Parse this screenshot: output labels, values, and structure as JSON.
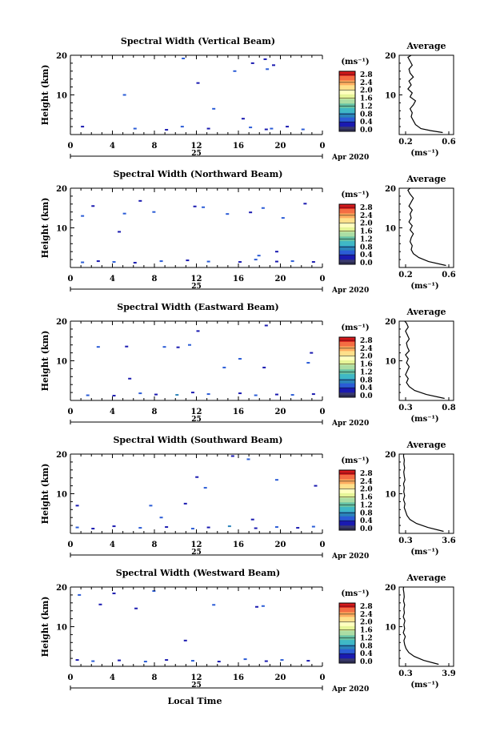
{
  "figure": {
    "x_axis_label": "Local Time",
    "x_ticks": [
      "0",
      "4",
      "8",
      "12",
      "16",
      "20",
      "0"
    ],
    "date_day": "25",
    "date_month_year": "Apr 2020",
    "height_label": "Height (km)",
    "height_ticks": [
      "20",
      "10"
    ],
    "units_label": "(ms⁻¹)",
    "colorbar_ticks": [
      "2.8",
      "2.4",
      "2.0",
      "1.6",
      "1.2",
      "0.8",
      "0.4",
      "0.0"
    ],
    "colorbar_colors": [
      "#d7191c",
      "#f46d43",
      "#fdae61",
      "#fee08b",
      "#ffffbf",
      "#e6f598",
      "#abdda4",
      "#66c2a5",
      "#3fb8c6",
      "#2b83ba",
      "#2b5cd6",
      "#1a1ab0",
      "#3a3a6e"
    ],
    "average_title": "Average",
    "average_unit_label": "(ms⁻¹)"
  },
  "panels": [
    {
      "title": "Spectral Width (Vertical Beam)",
      "avg_ticks": [
        "0.2",
        "0.6"
      ]
    },
    {
      "title": "Spectral Width (Northward Beam)",
      "avg_ticks": [
        "0.2",
        "0.6"
      ]
    },
    {
      "title": "Spectral Width (Eastward Beam)",
      "avg_ticks": [
        "0.3",
        "0.8"
      ]
    },
    {
      "title": "Spectral Width (Southward Beam)",
      "avg_ticks": [
        "0.3",
        "3.6"
      ]
    },
    {
      "title": "Spectral Width (Westward Beam)",
      "avg_ticks": [
        "0.3",
        "3.9"
      ]
    }
  ],
  "chart_data": [
    {
      "type": "heatmap",
      "title": "Spectral Width (Vertical Beam)",
      "xlabel": "",
      "ylabel": "Height (km)",
      "xlim": [
        0,
        24
      ],
      "ylim": [
        0,
        20
      ],
      "cells": [
        [
          1,
          2,
          0.3
        ],
        [
          6,
          1.5,
          0.4
        ],
        [
          9,
          1.2,
          0.3
        ],
        [
          10.5,
          2,
          0.5
        ],
        [
          13,
          1.5,
          0.3
        ],
        [
          17,
          1.8,
          0.4
        ],
        [
          18.5,
          1.3,
          0.3
        ],
        [
          19,
          1.5,
          0.5
        ],
        [
          20.5,
          2,
          0.3
        ],
        [
          22,
          1.3,
          0.4
        ],
        [
          5,
          10,
          0.4
        ],
        [
          12,
          13,
          0.3
        ],
        [
          15.5,
          16,
          0.5
        ],
        [
          17.2,
          18,
          0.3
        ],
        [
          18.6,
          16.5,
          0.4
        ],
        [
          19.2,
          17.5,
          0.3
        ],
        [
          13.5,
          6.5,
          0.4
        ],
        [
          16.3,
          4,
          0.3
        ],
        [
          18.4,
          19,
          0.3
        ],
        [
          10.6,
          19.2,
          0.4
        ]
      ]
    },
    {
      "type": "heatmap",
      "title": "Spectral Width (Northward Beam)",
      "xlabel": "",
      "ylabel": "Height (km)",
      "xlim": [
        0,
        24
      ],
      "ylim": [
        0,
        20
      ],
      "cells": [
        [
          1,
          1.3,
          0.4
        ],
        [
          2.5,
          1.6,
          0.3
        ],
        [
          4,
          1.4,
          0.5
        ],
        [
          6,
          1.2,
          0.3
        ],
        [
          8.5,
          1.6,
          0.4
        ],
        [
          11,
          1.8,
          0.3
        ],
        [
          13,
          1.5,
          0.5
        ],
        [
          16,
          1.4,
          0.3
        ],
        [
          17.5,
          2,
          0.4
        ],
        [
          19.5,
          1.5,
          0.3
        ],
        [
          21,
          1.6,
          0.5
        ],
        [
          23,
          1.4,
          0.3
        ],
        [
          1,
          13,
          0.4
        ],
        [
          2,
          15.5,
          0.3
        ],
        [
          5,
          13.6,
          0.5
        ],
        [
          6.5,
          16.8,
          0.3
        ],
        [
          7.8,
          14,
          0.4
        ],
        [
          11.7,
          15.4,
          0.3
        ],
        [
          14.8,
          13.5,
          0.4
        ],
        [
          17,
          13.9,
          0.3
        ],
        [
          18.2,
          15,
          0.5
        ],
        [
          19.5,
          4,
          0.3
        ],
        [
          20.1,
          12.5,
          0.4
        ],
        [
          22.2,
          16.1,
          0.3
        ],
        [
          17.8,
          3,
          0.4
        ],
        [
          12.5,
          15.2,
          0.5
        ],
        [
          4.5,
          9,
          0.3
        ]
      ]
    },
    {
      "type": "heatmap",
      "title": "Spectral Width (Eastward Beam)",
      "xlabel": "",
      "ylabel": "Height (km)",
      "xlim": [
        0,
        24
      ],
      "ylim": [
        0,
        20
      ],
      "cells": [
        [
          1.5,
          1.3,
          0.5
        ],
        [
          4,
          1.2,
          0.3
        ],
        [
          6.5,
          1.8,
          0.4
        ],
        [
          8,
          1.5,
          0.3
        ],
        [
          10,
          1.4,
          0.6
        ],
        [
          11.5,
          2,
          0.3
        ],
        [
          13,
          1.6,
          0.4
        ],
        [
          16,
          1.8,
          0.3
        ],
        [
          17.5,
          1.3,
          0.5
        ],
        [
          19.5,
          1.5,
          0.3
        ],
        [
          21,
          1.4,
          0.4
        ],
        [
          23,
          1.6,
          0.3
        ],
        [
          2.5,
          13.5,
          0.4
        ],
        [
          5.2,
          13.6,
          0.3
        ],
        [
          8.8,
          13.5,
          0.5
        ],
        [
          10.1,
          13.4,
          0.3
        ],
        [
          11.2,
          14,
          0.4
        ],
        [
          12,
          17.5,
          0.3
        ],
        [
          16,
          10.5,
          0.5
        ],
        [
          18.5,
          18.9,
          0.3
        ],
        [
          22.5,
          9.5,
          0.4
        ],
        [
          5.5,
          5.5,
          0.3
        ],
        [
          14.5,
          8.3,
          0.4
        ],
        [
          18.3,
          8.3,
          0.3
        ],
        [
          22.8,
          12,
          0.3
        ]
      ]
    },
    {
      "type": "heatmap",
      "title": "Spectral Width (Southward Beam)",
      "xlabel": "",
      "ylabel": "Height (km)",
      "xlim": [
        0,
        24
      ],
      "ylim": [
        0,
        20
      ],
      "cells": [
        [
          0.5,
          1.5,
          0.4
        ],
        [
          2,
          1.2,
          0.3
        ],
        [
          4,
          1.8,
          0.3
        ],
        [
          6.5,
          1.4,
          0.5
        ],
        [
          9,
          1.6,
          0.3
        ],
        [
          11.5,
          1.2,
          0.4
        ],
        [
          13,
          1.5,
          0.3
        ],
        [
          15,
          1.8,
          0.6
        ],
        [
          17.5,
          1.3,
          0.3
        ],
        [
          19.5,
          1.6,
          0.4
        ],
        [
          21.5,
          1.4,
          0.3
        ],
        [
          23,
          1.7,
          0.5
        ],
        [
          0.5,
          7,
          0.3
        ],
        [
          7.5,
          7,
          0.4
        ],
        [
          10.8,
          7.5,
          0.3
        ],
        [
          12.7,
          11.5,
          0.5
        ],
        [
          15.3,
          19.5,
          0.3
        ],
        [
          16.8,
          18.7,
          0.4
        ],
        [
          17.2,
          3.5,
          0.3
        ],
        [
          19.5,
          13.5,
          0.4
        ],
        [
          23.2,
          12,
          0.3
        ],
        [
          11.9,
          14.2,
          0.3
        ],
        [
          8.5,
          4,
          0.4
        ]
      ]
    },
    {
      "type": "heatmap",
      "title": "Spectral Width (Westward Beam)",
      "xlabel": "",
      "ylabel": "Height (km)",
      "xlim": [
        0,
        24
      ],
      "ylim": [
        0,
        20
      ],
      "cells": [
        [
          0.5,
          1.6,
          0.3
        ],
        [
          2,
          1.3,
          0.4
        ],
        [
          4.5,
          1.5,
          0.3
        ],
        [
          7,
          1.2,
          0.5
        ],
        [
          9,
          1.6,
          0.3
        ],
        [
          11.5,
          1.4,
          0.4
        ],
        [
          14,
          1.2,
          0.3
        ],
        [
          16.5,
          1.8,
          0.5
        ],
        [
          18.5,
          1.3,
          0.3
        ],
        [
          20,
          1.6,
          0.4
        ],
        [
          22.5,
          1.4,
          0.3
        ],
        [
          0.7,
          18,
          0.4
        ],
        [
          2.7,
          15.6,
          0.3
        ],
        [
          4,
          18.4,
          0.3
        ],
        [
          7.8,
          19,
          0.5
        ],
        [
          10.8,
          6.5,
          0.3
        ],
        [
          13.5,
          15.5,
          0.4
        ],
        [
          17.6,
          15,
          0.3
        ],
        [
          18.2,
          15.2,
          0.4
        ],
        [
          6.1,
          14.6,
          0.3
        ]
      ]
    },
    {
      "type": "line",
      "title": "Average",
      "ylabel": "Height (km)",
      "xlim": [
        0.15,
        0.65
      ],
      "ylim": [
        0,
        20
      ],
      "x": [
        0.55,
        0.44,
        0.35,
        0.3,
        0.28,
        0.26,
        0.27,
        0.25,
        0.28,
        0.3,
        0.25,
        0.27,
        0.23,
        0.26,
        0.24,
        0.28,
        0.25,
        0.24,
        0.27,
        0.25,
        0.23,
        0.26
      ],
      "y": [
        0.5,
        1,
        1.5,
        2.5,
        3.5,
        4.5,
        5.5,
        6.5,
        7.5,
        8.5,
        9.5,
        10.5,
        11.5,
        12.5,
        13.5,
        14.5,
        15.5,
        16.5,
        17.5,
        18.5,
        19.5,
        20
      ]
    },
    {
      "type": "line",
      "title": "Average",
      "ylabel": "Height (km)",
      "xlim": [
        0.15,
        0.65
      ],
      "ylim": [
        0,
        20
      ],
      "x": [
        0.58,
        0.42,
        0.33,
        0.28,
        0.26,
        0.27,
        0.25,
        0.26,
        0.28,
        0.25,
        0.27,
        0.24,
        0.26,
        0.25,
        0.27,
        0.24,
        0.26,
        0.28,
        0.25,
        0.23,
        0.25
      ],
      "y": [
        0.5,
        1.5,
        2.5,
        3.5,
        4.5,
        5.5,
        6.5,
        7.5,
        8.5,
        9.5,
        10.5,
        11.5,
        12.5,
        13.5,
        14.5,
        15.5,
        16.5,
        17.5,
        18.5,
        19.5,
        20
      ]
    },
    {
      "type": "line",
      "title": "Average",
      "ylabel": "Height (km)",
      "xlim": [
        0.25,
        0.85
      ],
      "ylim": [
        0,
        20
      ],
      "x": [
        0.75,
        0.55,
        0.42,
        0.36,
        0.33,
        0.35,
        0.32,
        0.34,
        0.36,
        0.33,
        0.35,
        0.32,
        0.36,
        0.34,
        0.33,
        0.36,
        0.34,
        0.32,
        0.35,
        0.33,
        0.31
      ],
      "y": [
        0.5,
        1.5,
        2.5,
        3.5,
        4.5,
        5.5,
        6.5,
        7.5,
        8.5,
        9.5,
        10.5,
        11.5,
        12.5,
        13.5,
        14.5,
        15.5,
        16.5,
        17.5,
        18.5,
        19.5,
        20
      ]
    },
    {
      "type": "line",
      "title": "Average",
      "ylabel": "Height (km)",
      "xlim": [
        0.2,
        4.0
      ],
      "ylim": [
        0,
        20
      ],
      "x": [
        3.3,
        2.2,
        1.4,
        0.95,
        0.75,
        0.65,
        0.55,
        0.6,
        0.5,
        0.58,
        0.52,
        0.56,
        0.5,
        0.6,
        0.55,
        0.52,
        0.58,
        0.53,
        0.56,
        0.5,
        0.52
      ],
      "y": [
        0.5,
        1.5,
        2.5,
        3.5,
        4.5,
        5.5,
        6.5,
        7.5,
        8.5,
        9.5,
        10.5,
        11.5,
        12.5,
        13.5,
        14.5,
        15.5,
        16.5,
        17.5,
        18.5,
        19.5,
        20
      ]
    },
    {
      "type": "line",
      "title": "Average",
      "ylabel": "Height (km)",
      "xlim": [
        0.2,
        4.2
      ],
      "ylim": [
        0,
        20
      ],
      "x": [
        3.1,
        2.0,
        1.3,
        0.9,
        0.7,
        0.6,
        0.55,
        0.65,
        0.5,
        0.6,
        0.55,
        0.62,
        0.5,
        0.58,
        0.54,
        0.6,
        0.52,
        0.57,
        0.55,
        0.5,
        0.53
      ],
      "y": [
        0.5,
        1.5,
        2.5,
        3.5,
        4.5,
        5.5,
        6.5,
        7.5,
        8.5,
        9.5,
        10.5,
        11.5,
        12.5,
        13.5,
        14.5,
        15.5,
        16.5,
        17.5,
        18.5,
        19.5,
        20
      ]
    }
  ]
}
